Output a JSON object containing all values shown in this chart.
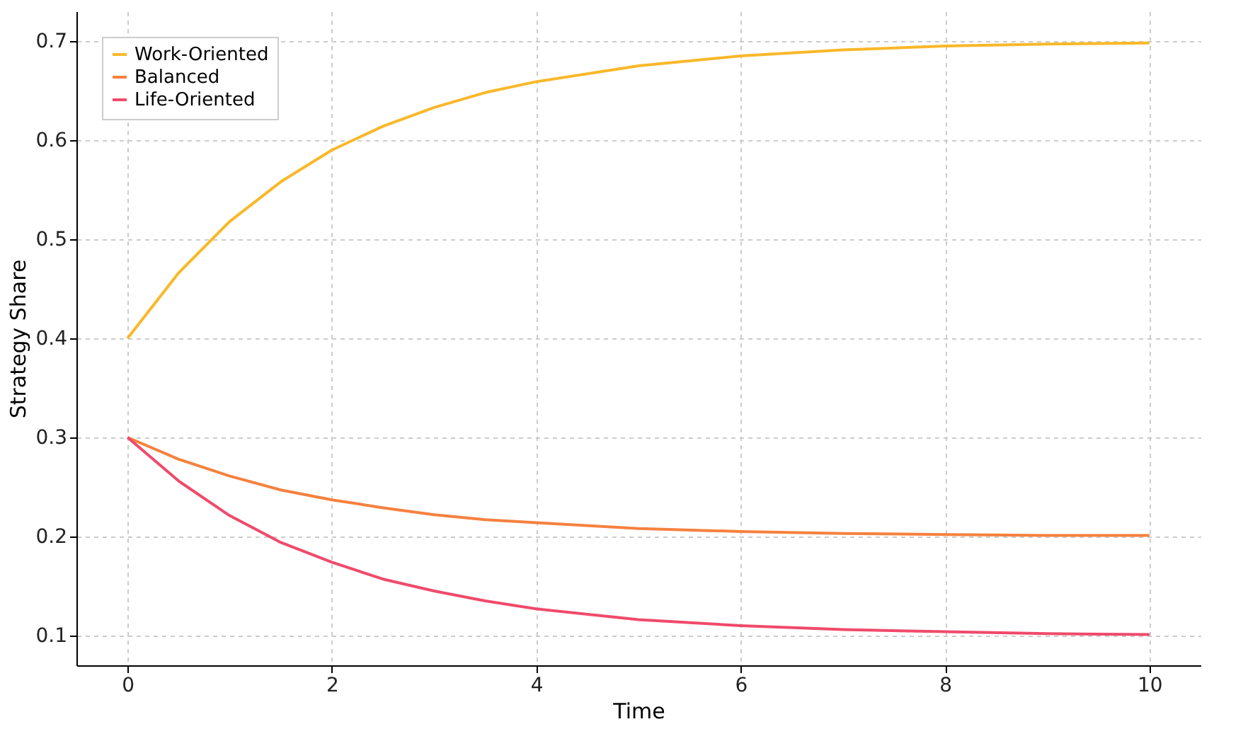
{
  "chart_data": {
    "type": "line",
    "xlabel": "Time",
    "ylabel": "Strategy Share",
    "x": [
      0,
      0.5,
      1,
      1.5,
      2,
      2.5,
      3,
      3.5,
      4,
      5,
      6,
      7,
      8,
      9,
      10
    ],
    "series": [
      {
        "name": "Work-Oriented",
        "color": "#f9b829",
        "values": [
          0.4,
          0.466,
          0.518,
          0.558,
          0.59,
          0.614,
          0.633,
          0.648,
          0.659,
          0.675,
          0.685,
          0.691,
          0.695,
          0.697,
          0.698
        ]
      },
      {
        "name": "Balanced",
        "color": "#f5813e",
        "values": [
          0.3,
          0.278,
          0.261,
          0.247,
          0.237,
          0.229,
          0.222,
          0.217,
          0.214,
          0.208,
          0.205,
          0.203,
          0.202,
          0.201,
          0.201
        ]
      },
      {
        "name": "Life-Oriented",
        "color": "#f04a6b",
        "values": [
          0.3,
          0.256,
          0.221,
          0.194,
          0.174,
          0.157,
          0.145,
          0.135,
          0.127,
          0.116,
          0.11,
          0.106,
          0.104,
          0.102,
          0.101
        ]
      }
    ],
    "xlim": [
      -0.5,
      10.5
    ],
    "xticks": [
      0,
      2,
      4,
      6,
      8,
      10
    ],
    "ylim": [
      0.07,
      0.73
    ],
    "yticks": [
      0.1,
      0.2,
      0.3,
      0.4,
      0.5,
      0.6,
      0.7
    ],
    "grid": true,
    "legend": "top left",
    "marker": "none",
    "line_style": "solid"
  }
}
